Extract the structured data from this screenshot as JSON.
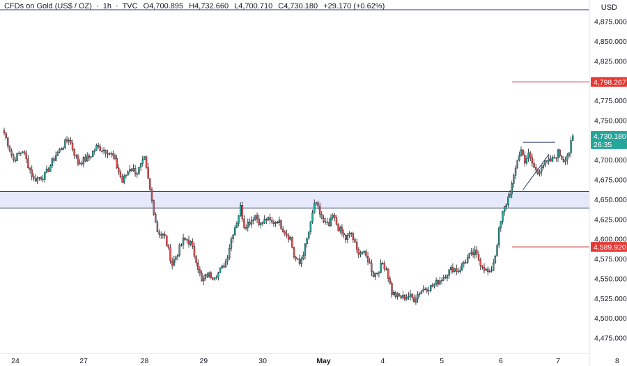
{
  "header": {
    "symbol": "CFDs on Gold (US$ / OZ)",
    "interval": "1h",
    "source": "TVC",
    "open_label": "O",
    "open": "4,700.895",
    "high_label": "H",
    "high": "4,732.660",
    "low_label": "L",
    "low": "4,700.710",
    "close_label": "C",
    "close": "4,730.180",
    "change": "+29.170 (+0.62%)",
    "sep": "·"
  },
  "currency": "USD",
  "colors": {
    "up": "#26a69a",
    "down": "#ef5350",
    "candle_border": "#131722",
    "zone_fill": "#e6e9fb",
    "zone_line": "#2a3a6b",
    "level_line": "#c62828",
    "price_tag": "#26a69a",
    "level_tag": "#e53935",
    "triangle": "#2a3a6b"
  },
  "price_tags": {
    "current": "4,730.180",
    "countdown": "26:35",
    "upper_level": "4,798.267",
    "lower_level": "4,589.920"
  },
  "chart_data": {
    "type": "candlestick",
    "title": "CFDs on Gold (US$ / OZ) · 1h · TVC",
    "y_axis": {
      "range": [
        4475,
        4880
      ],
      "ticks": [
        4875,
        4850,
        4825,
        4800,
        4775,
        4750,
        4725,
        4700,
        4675,
        4650,
        4625,
        4600,
        4575,
        4550,
        4525,
        4500,
        4475
      ],
      "tick_labels": [
        "4,875.000",
        "4,850.000",
        "4,825.000",
        "4,800.000",
        "4,775.000",
        "4,750.000",
        "4,725.000",
        "4,700.000",
        "4,675.000",
        "4,650.000",
        "4,625.000",
        "4,600.000",
        "4,575.000",
        "4,550.000",
        "4,525.000",
        "4,500.000",
        "4,475.000"
      ],
      "position": "right"
    },
    "x_axis": {
      "tick_labels": [
        "24",
        "27",
        "28",
        "29",
        "30",
        "May",
        "4",
        "5",
        "6",
        "7",
        "8"
      ],
      "bold": [
        "May"
      ]
    },
    "grid": false,
    "support_zone": {
      "low": 4639,
      "high": 4660
    },
    "horizontal_levels": [
      4798.267,
      4589.92
    ],
    "triangle_pattern": {
      "top": 4722,
      "apex_start_low": 4662,
      "apex_end": 4707
    },
    "path_points": [
      [
        0,
        4734
      ],
      [
        5,
        4700
      ],
      [
        10,
        4712
      ],
      [
        16,
        4675
      ],
      [
        22,
        4680
      ],
      [
        28,
        4706
      ],
      [
        35,
        4727
      ],
      [
        40,
        4696
      ],
      [
        46,
        4703
      ],
      [
        50,
        4716
      ],
      [
        56,
        4711
      ],
      [
        59,
        4704
      ],
      [
        64,
        4672
      ],
      [
        68,
        4690
      ],
      [
        72,
        4684
      ],
      [
        76,
        4700
      ],
      [
        80,
        4648
      ],
      [
        83,
        4610
      ],
      [
        87,
        4602
      ],
      [
        91,
        4568
      ],
      [
        95,
        4588
      ],
      [
        97,
        4598
      ],
      [
        99,
        4599
      ],
      [
        101,
        4594
      ],
      [
        103,
        4580
      ],
      [
        104,
        4574
      ],
      [
        107,
        4545
      ],
      [
        110,
        4555
      ],
      [
        113,
        4553
      ],
      [
        116,
        4557
      ],
      [
        118,
        4563
      ],
      [
        120,
        4572
      ],
      [
        121,
        4580
      ],
      [
        122,
        4590
      ],
      [
        123,
        4600
      ],
      [
        124,
        4609
      ],
      [
        126,
        4622
      ],
      [
        128,
        4640
      ],
      [
        130,
        4617
      ],
      [
        133,
        4622
      ],
      [
        136,
        4630
      ],
      [
        139,
        4618
      ],
      [
        142,
        4625
      ],
      [
        145,
        4620
      ],
      [
        148,
        4624
      ],
      [
        152,
        4609
      ],
      [
        155,
        4601
      ],
      [
        157,
        4578
      ],
      [
        160,
        4568
      ],
      [
        163,
        4590
      ],
      [
        166,
        4618
      ],
      [
        168,
        4645
      ],
      [
        170,
        4638
      ],
      [
        173,
        4620
      ],
      [
        176,
        4616
      ],
      [
        178,
        4629
      ],
      [
        181,
        4614
      ],
      [
        185,
        4600
      ],
      [
        188,
        4607
      ],
      [
        191,
        4585
      ],
      [
        194,
        4583
      ],
      [
        197,
        4574
      ],
      [
        200,
        4555
      ],
      [
        202,
        4558
      ],
      [
        205,
        4569
      ],
      [
        207,
        4563
      ],
      [
        210,
        4532
      ],
      [
        213,
        4527
      ],
      [
        216,
        4526
      ],
      [
        219,
        4528
      ],
      [
        222,
        4524
      ],
      [
        225,
        4533
      ],
      [
        228,
        4538
      ],
      [
        231,
        4539
      ],
      [
        234,
        4544
      ],
      [
        237,
        4550
      ],
      [
        240,
        4557
      ],
      [
        243,
        4563
      ],
      [
        246,
        4560
      ],
      [
        249,
        4570
      ],
      [
        252,
        4578
      ],
      [
        255,
        4582
      ],
      [
        258,
        4570
      ],
      [
        261,
        4560
      ],
      [
        263,
        4555
      ],
      [
        264,
        4562
      ],
      [
        266,
        4580
      ],
      [
        268,
        4610
      ],
      [
        270,
        4632
      ],
      [
        272,
        4645
      ],
      [
        274,
        4660
      ],
      [
        276,
        4676
      ],
      [
        278,
        4701
      ],
      [
        280,
        4712
      ],
      [
        282,
        4699
      ],
      [
        284,
        4706
      ],
      [
        287,
        4690
      ],
      [
        289,
        4683
      ],
      [
        291,
        4693
      ],
      [
        294,
        4696
      ],
      [
        297,
        4700
      ],
      [
        300,
        4709
      ],
      [
        303,
        4700
      ],
      [
        306,
        4710
      ],
      [
        308,
        4730
      ]
    ],
    "x_day_positions": [
      [
        0,
        "24"
      ],
      [
        37,
        "27"
      ],
      [
        70,
        "28"
      ],
      [
        102,
        "29"
      ],
      [
        134,
        "30"
      ],
      [
        167,
        "May"
      ],
      [
        199,
        "4"
      ],
      [
        231,
        "5"
      ],
      [
        263,
        "6"
      ],
      [
        294,
        "7"
      ],
      [
        326,
        "8"
      ]
    ]
  }
}
